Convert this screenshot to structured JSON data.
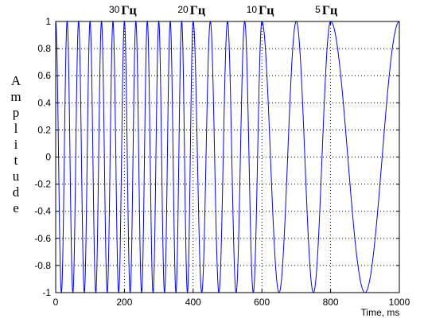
{
  "chart_data": {
    "type": "line",
    "xlabel": "Time, ms",
    "ylabel": "Amplitude",
    "xlim": [
      0,
      1000
    ],
    "ylim": [
      -1,
      1
    ],
    "x_ticks": [
      "0",
      "200",
      "400",
      "600",
      "800",
      "1000"
    ],
    "y_ticks": [
      "1",
      "0.8",
      "0.6",
      "0.4",
      "0.2",
      "0",
      "-0.2",
      "-0.4",
      "-0.6",
      "-0.8",
      "-1"
    ],
    "grid": true,
    "line_color": "#0000ff",
    "segments": [
      {
        "start_ms": 0,
        "end_ms": 200,
        "freq_hz": 30
      },
      {
        "start_ms": 200,
        "end_ms": 400,
        "freq_hz": 30
      },
      {
        "start_ms": 400,
        "end_ms": 600,
        "freq_hz": 20
      },
      {
        "start_ms": 600,
        "end_ms": 800,
        "freq_hz": 10
      },
      {
        "start_ms": 800,
        "end_ms": 1000,
        "freq_hz": 5
      }
    ],
    "annotations": [
      {
        "number": "30",
        "unit": "Гц",
        "x_ms": 155
      },
      {
        "number": "20",
        "unit": "Гц",
        "x_ms": 355
      },
      {
        "number": "10",
        "unit": "Гц",
        "x_ms": 555
      },
      {
        "number": "5",
        "unit": "Гц",
        "x_ms": 755
      }
    ]
  }
}
